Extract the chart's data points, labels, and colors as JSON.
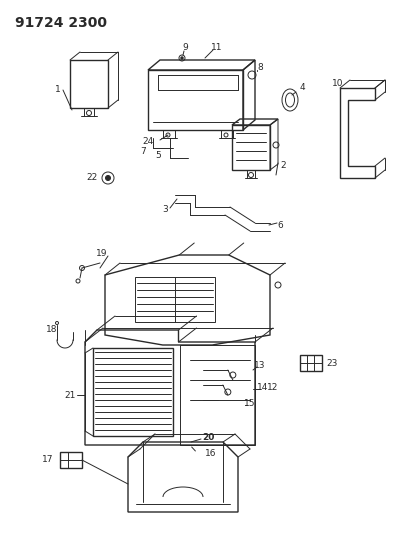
{
  "title": "91724 2300",
  "background_color": "#ffffff",
  "title_fontsize": 10,
  "title_fontweight": "bold",
  "fig_width": 3.94,
  "fig_height": 5.33,
  "dpi": 100,
  "line_color": "#2a2a2a",
  "label_fontsize": 6.5
}
